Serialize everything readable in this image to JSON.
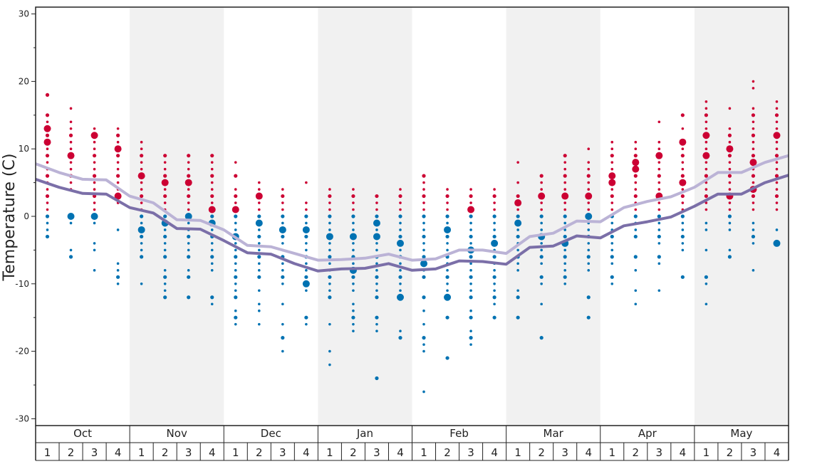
{
  "chart_data": {
    "type": "scatter",
    "title": "",
    "ylabel": "Temperature (C)",
    "ylim": [
      -31,
      31
    ],
    "yticks": [
      30,
      20,
      10,
      0,
      -10,
      -20,
      -30
    ],
    "months": [
      "Oct",
      "Nov",
      "Dec",
      "Jan",
      "Feb",
      "Mar",
      "Apr",
      "May"
    ],
    "weeks_per_month": [
      "1",
      "2",
      "3",
      "4"
    ],
    "shaded_months": [
      "Nov",
      "Jan",
      "Mar",
      "May"
    ],
    "colors": {
      "warm_dot": "#cc0033",
      "cold_dot": "#0072b2",
      "upper_line": "#bbb3d6",
      "lower_line": "#7b6fa8",
      "shade": "#f1f1f1",
      "axis": "#222222"
    },
    "series": [
      {
        "role": "upper_line",
        "values": [
          7.8,
          6.5,
          5.5,
          5.4,
          3.0,
          2.0,
          -0.5,
          -0.6,
          -2.0,
          -4.3,
          -4.5,
          -5.5,
          -6.5,
          -6.4,
          -6.2,
          -5.6,
          -6.5,
          -6.3,
          -5.0,
          -5.0,
          -5.5,
          -3.0,
          -2.5,
          -0.7,
          -0.8,
          1.3,
          2.2,
          2.9,
          4.3,
          6.5,
          6.5,
          8.0,
          9.0
        ]
      },
      {
        "role": "lower_line",
        "values": [
          5.5,
          4.3,
          3.4,
          3.3,
          1.3,
          0.5,
          -1.8,
          -1.9,
          -3.6,
          -5.4,
          -5.6,
          -7.0,
          -8.1,
          -7.8,
          -7.7,
          -7.0,
          -8.0,
          -7.8,
          -6.6,
          -6.7,
          -7.1,
          -4.6,
          -4.4,
          -2.9,
          -3.2,
          -1.4,
          -0.8,
          -0.1,
          1.5,
          3.3,
          3.3,
          5.0,
          6.1
        ]
      }
    ],
    "points": [
      {
        "w": 0,
        "t": [
          18,
          15,
          14,
          13,
          12,
          11,
          10,
          9,
          8,
          7,
          6,
          5,
          4,
          3,
          2,
          1,
          0,
          -1,
          -2,
          -3
        ],
        "big": [
          13,
          11
        ]
      },
      {
        "w": 1,
        "t": [
          16,
          14,
          13,
          12,
          11,
          10,
          9,
          8,
          7,
          6,
          5,
          4,
          0,
          -1,
          -5,
          -6
        ],
        "big": [
          9,
          0
        ]
      },
      {
        "w": 2,
        "t": [
          13,
          12,
          11,
          10,
          9,
          8,
          7,
          6,
          5,
          4,
          3,
          2,
          1,
          0,
          -1,
          -4,
          -5,
          -8
        ],
        "big": [
          12,
          0
        ]
      },
      {
        "w": 3,
        "t": [
          13,
          12,
          11,
          10,
          9,
          8,
          7,
          6,
          5,
          4,
          3,
          2,
          -2,
          -7,
          -8,
          -9,
          -10
        ],
        "big": [
          10,
          3
        ]
      },
      {
        "w": 4,
        "t": [
          11,
          10,
          9,
          8,
          7,
          6,
          5,
          4,
          3,
          2,
          1,
          0,
          -1,
          -2,
          -3,
          -4,
          -5,
          -6,
          -10
        ],
        "big": [
          6,
          -2
        ]
      },
      {
        "w": 5,
        "t": [
          9,
          8,
          7,
          6,
          5,
          4,
          3,
          2,
          1,
          0,
          -1,
          -2,
          -3,
          -4,
          -5,
          -6,
          -8,
          -9,
          -10,
          -11,
          -12
        ],
        "big": [
          5,
          -1
        ]
      },
      {
        "w": 6,
        "t": [
          9,
          8,
          7,
          6,
          5,
          4,
          3,
          2,
          1,
          0,
          -1,
          -2,
          -3,
          -4,
          -5,
          -6,
          -8,
          -9,
          -12
        ],
        "big": [
          5,
          0
        ]
      },
      {
        "w": 7,
        "t": [
          9,
          8,
          7,
          6,
          5,
          4,
          3,
          2,
          1,
          0,
          -1,
          -2,
          -3,
          -4,
          -5,
          -6,
          -7,
          -8,
          -12,
          -13
        ],
        "big": [
          1,
          -1
        ]
      },
      {
        "w": 8,
        "t": [
          8,
          6,
          4,
          3,
          2,
          1,
          0,
          -1,
          -2,
          -3,
          -4,
          -5,
          -6,
          -7,
          -8,
          -9,
          -10,
          -11,
          -12,
          -14,
          -15,
          -16
        ],
        "big": [
          1,
          -3
        ]
      },
      {
        "w": 9,
        "t": [
          5,
          4,
          3,
          2,
          1,
          0,
          -1,
          -2,
          -3,
          -4,
          -5,
          -6,
          -7,
          -8,
          -9,
          -11,
          -13,
          -14,
          -16
        ],
        "big": [
          3,
          -1
        ]
      },
      {
        "w": 10,
        "t": [
          4,
          3,
          2,
          1,
          0,
          -1,
          -2,
          -3,
          -4,
          -5,
          -6,
          -7,
          -8,
          -9,
          -10,
          -13,
          -16,
          -18,
          -20
        ],
        "big": [
          -2
        ]
      },
      {
        "w": 11,
        "t": [
          5,
          2,
          1,
          0,
          -1,
          -2,
          -3,
          -4,
          -5,
          -6,
          -7,
          -8,
          -9,
          -10,
          -11,
          -15,
          -16
        ],
        "big": [
          -2,
          -10
        ]
      },
      {
        "w": 12,
        "t": [
          4,
          3,
          2,
          1,
          0,
          -1,
          -2,
          -3,
          -4,
          -5,
          -6,
          -7,
          -8,
          -9,
          -10,
          -11,
          -12,
          -16,
          -20,
          -22
        ],
        "big": [
          -3
        ]
      },
      {
        "w": 13,
        "t": [
          4,
          3,
          2,
          1,
          0,
          -1,
          -2,
          -3,
          -4,
          -5,
          -6,
          -7,
          -8,
          -9,
          -10,
          -11,
          -13,
          -14,
          -15,
          -16,
          -17
        ],
        "big": [
          -3,
          -8
        ]
      },
      {
        "w": 14,
        "t": [
          3,
          2,
          1,
          0,
          -1,
          -2,
          -3,
          -4,
          -5,
          -6,
          -7,
          -8,
          -9,
          -10,
          -11,
          -12,
          -15,
          -16,
          -17,
          -24
        ],
        "big": [
          -1,
          -3
        ]
      },
      {
        "w": 15,
        "t": [
          4,
          3,
          2,
          1,
          0,
          -1,
          -2,
          -3,
          -4,
          -5,
          -6,
          -7,
          -8,
          -9,
          -10,
          -11,
          -12,
          -17,
          -18
        ],
        "big": [
          -4,
          -12
        ]
      },
      {
        "w": 16,
        "t": [
          6,
          5,
          4,
          3,
          2,
          1,
          0,
          -1,
          -2,
          -3,
          -4,
          -5,
          -6,
          -7,
          -8,
          -9,
          -12,
          -14,
          -16,
          -18,
          -19,
          -20,
          -26
        ],
        "big": [
          -7
        ]
      },
      {
        "w": 17,
        "t": [
          4,
          3,
          2,
          1,
          0,
          -1,
          -2,
          -3,
          -4,
          -5,
          -6,
          -7,
          -8,
          -9,
          -10,
          -11,
          -12,
          -15,
          -21
        ],
        "big": [
          -2,
          -12
        ]
      },
      {
        "w": 18,
        "t": [
          4,
          3,
          2,
          1,
          0,
          -1,
          -2,
          -3,
          -4,
          -5,
          -6,
          -7,
          -8,
          -9,
          -10,
          -11,
          -12,
          -14,
          -15,
          -17,
          -18,
          -19
        ],
        "big": [
          1,
          -5
        ]
      },
      {
        "w": 19,
        "t": [
          4,
          3,
          2,
          1,
          0,
          -1,
          -2,
          -3,
          -4,
          -5,
          -6,
          -7,
          -8,
          -9,
          -10,
          -11,
          -12,
          -13,
          -15
        ],
        "big": [
          -4
        ]
      },
      {
        "w": 20,
        "t": [
          8,
          5,
          3,
          2,
          1,
          0,
          -1,
          -2,
          -3,
          -4,
          -5,
          -6,
          -7,
          -8,
          -11,
          -12,
          -15
        ],
        "big": [
          2,
          -1
        ]
      },
      {
        "w": 21,
        "t": [
          6,
          5,
          4,
          3,
          2,
          1,
          0,
          -1,
          -2,
          -3,
          -4,
          -5,
          -6,
          -7,
          -9,
          -10,
          -13,
          -18
        ],
        "big": [
          3,
          -3
        ]
      },
      {
        "w": 22,
        "t": [
          9,
          8,
          7,
          6,
          5,
          4,
          3,
          2,
          1,
          0,
          -1,
          -2,
          -3,
          -4,
          -5,
          -6,
          -7,
          -8,
          -9,
          -10
        ],
        "big": [
          3,
          -4
        ]
      },
      {
        "w": 23,
        "t": [
          10,
          8,
          7,
          6,
          5,
          4,
          3,
          2,
          1,
          0,
          -1,
          -2,
          -3,
          -4,
          -5,
          -6,
          -7,
          -8,
          -12,
          -15
        ],
        "big": [
          3,
          0
        ]
      },
      {
        "w": 24,
        "t": [
          11,
          10,
          9,
          8,
          7,
          6,
          5,
          4,
          3,
          2,
          1,
          0,
          -1,
          -2,
          -3,
          -4,
          -5,
          -6,
          -7,
          -9,
          -10
        ],
        "big": [
          5,
          6
        ]
      },
      {
        "w": 25,
        "t": [
          11,
          10,
          9,
          8,
          7,
          6,
          5,
          4,
          3,
          2,
          1,
          0,
          -1,
          -2,
          -3,
          -6,
          -8,
          -11,
          -13
        ],
        "big": [
          8,
          7
        ]
      },
      {
        "w": 26,
        "t": [
          14,
          11,
          10,
          9,
          8,
          7,
          6,
          5,
          4,
          3,
          2,
          1,
          0,
          -1,
          -2,
          -3,
          -4,
          -6,
          -7,
          -11
        ],
        "big": [
          9,
          3
        ]
      },
      {
        "w": 27,
        "t": [
          15,
          13,
          11,
          10,
          9,
          8,
          7,
          6,
          5,
          4,
          3,
          2,
          1,
          0,
          -1,
          -2,
          -3,
          -4,
          -5,
          -9
        ],
        "big": [
          11,
          5
        ]
      },
      {
        "w": 28,
        "t": [
          17,
          16,
          15,
          14,
          13,
          12,
          11,
          10,
          9,
          8,
          7,
          6,
          5,
          4,
          3,
          2,
          1,
          -1,
          -2,
          -5,
          -9,
          -10,
          -13
        ],
        "big": [
          12,
          9
        ]
      },
      {
        "w": 29,
        "t": [
          16,
          13,
          12,
          11,
          10,
          9,
          8,
          7,
          6,
          5,
          4,
          3,
          2,
          1,
          0,
          -1,
          -2,
          -5,
          -6
        ],
        "big": [
          10,
          3
        ]
      },
      {
        "w": 30,
        "t": [
          20,
          19,
          16,
          15,
          14,
          13,
          12,
          11,
          10,
          9,
          8,
          7,
          6,
          5,
          4,
          3,
          2,
          1,
          -1,
          -2,
          -3,
          -4,
          -8
        ],
        "big": [
          8,
          4
        ]
      },
      {
        "w": 31,
        "t": [
          17,
          16,
          15,
          14,
          13,
          12,
          11,
          10,
          9,
          8,
          7,
          6,
          5,
          4,
          3,
          2,
          1,
          -2,
          -4
        ],
        "big": [
          12,
          -4
        ]
      }
    ]
  }
}
